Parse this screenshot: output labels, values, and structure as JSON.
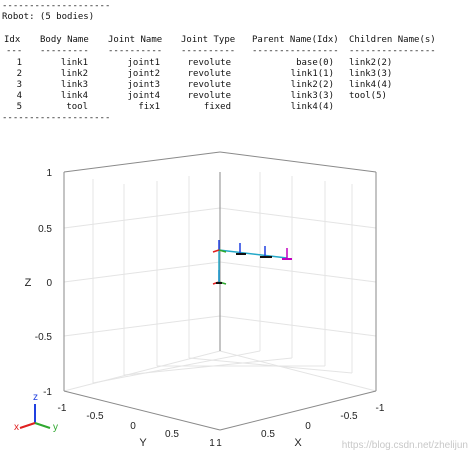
{
  "console": {
    "rule_top": "--------------------",
    "robot_line": "Robot: (5 bodies)",
    "headers": [
      "Idx",
      "Body Name",
      "Joint Name",
      "Joint Type",
      "Parent Name(Idx)",
      "Children Name(s)"
    ],
    "dashes": [
      "---",
      "---------",
      "----------",
      "----------",
      "----------------",
      "----------------"
    ],
    "rows": [
      [
        "1",
        "link1",
        "joint1",
        "revolute",
        "base(0)",
        "link2(2)"
      ],
      [
        "2",
        "link2",
        "joint2",
        "revolute",
        "link1(1)",
        "link3(3)"
      ],
      [
        "3",
        "link3",
        "joint3",
        "revolute",
        "link2(2)",
        "link4(4)"
      ],
      [
        "4",
        "link4",
        "joint4",
        "revolute",
        "link3(3)",
        "tool(5)"
      ],
      [
        "5",
        "tool",
        "fix1",
        "fixed",
        "link4(4)",
        ""
      ]
    ],
    "rule_bottom": "--------------------"
  },
  "plot": {
    "z_label": "Z",
    "y_label": "Y",
    "x_label": "X",
    "z_ticks": [
      "1",
      "0.5",
      "0",
      "-0.5",
      "-1"
    ],
    "y_ticks": [
      "-1",
      "-0.5",
      "0",
      "0.5",
      "1"
    ],
    "x_ticks": [
      "1",
      "0.5",
      "0",
      "-0.5",
      "-1"
    ],
    "grid": true,
    "triad": {
      "x": "x",
      "y": "y",
      "z": "z"
    },
    "colors": {
      "x_axis": "#e02020",
      "y_axis": "#2fa82f",
      "z_axis": "#2040e0",
      "link": "#24a8c8",
      "tool": "#c000c0"
    }
  },
  "watermark": "https://blog.csdn.net/zhelijun"
}
